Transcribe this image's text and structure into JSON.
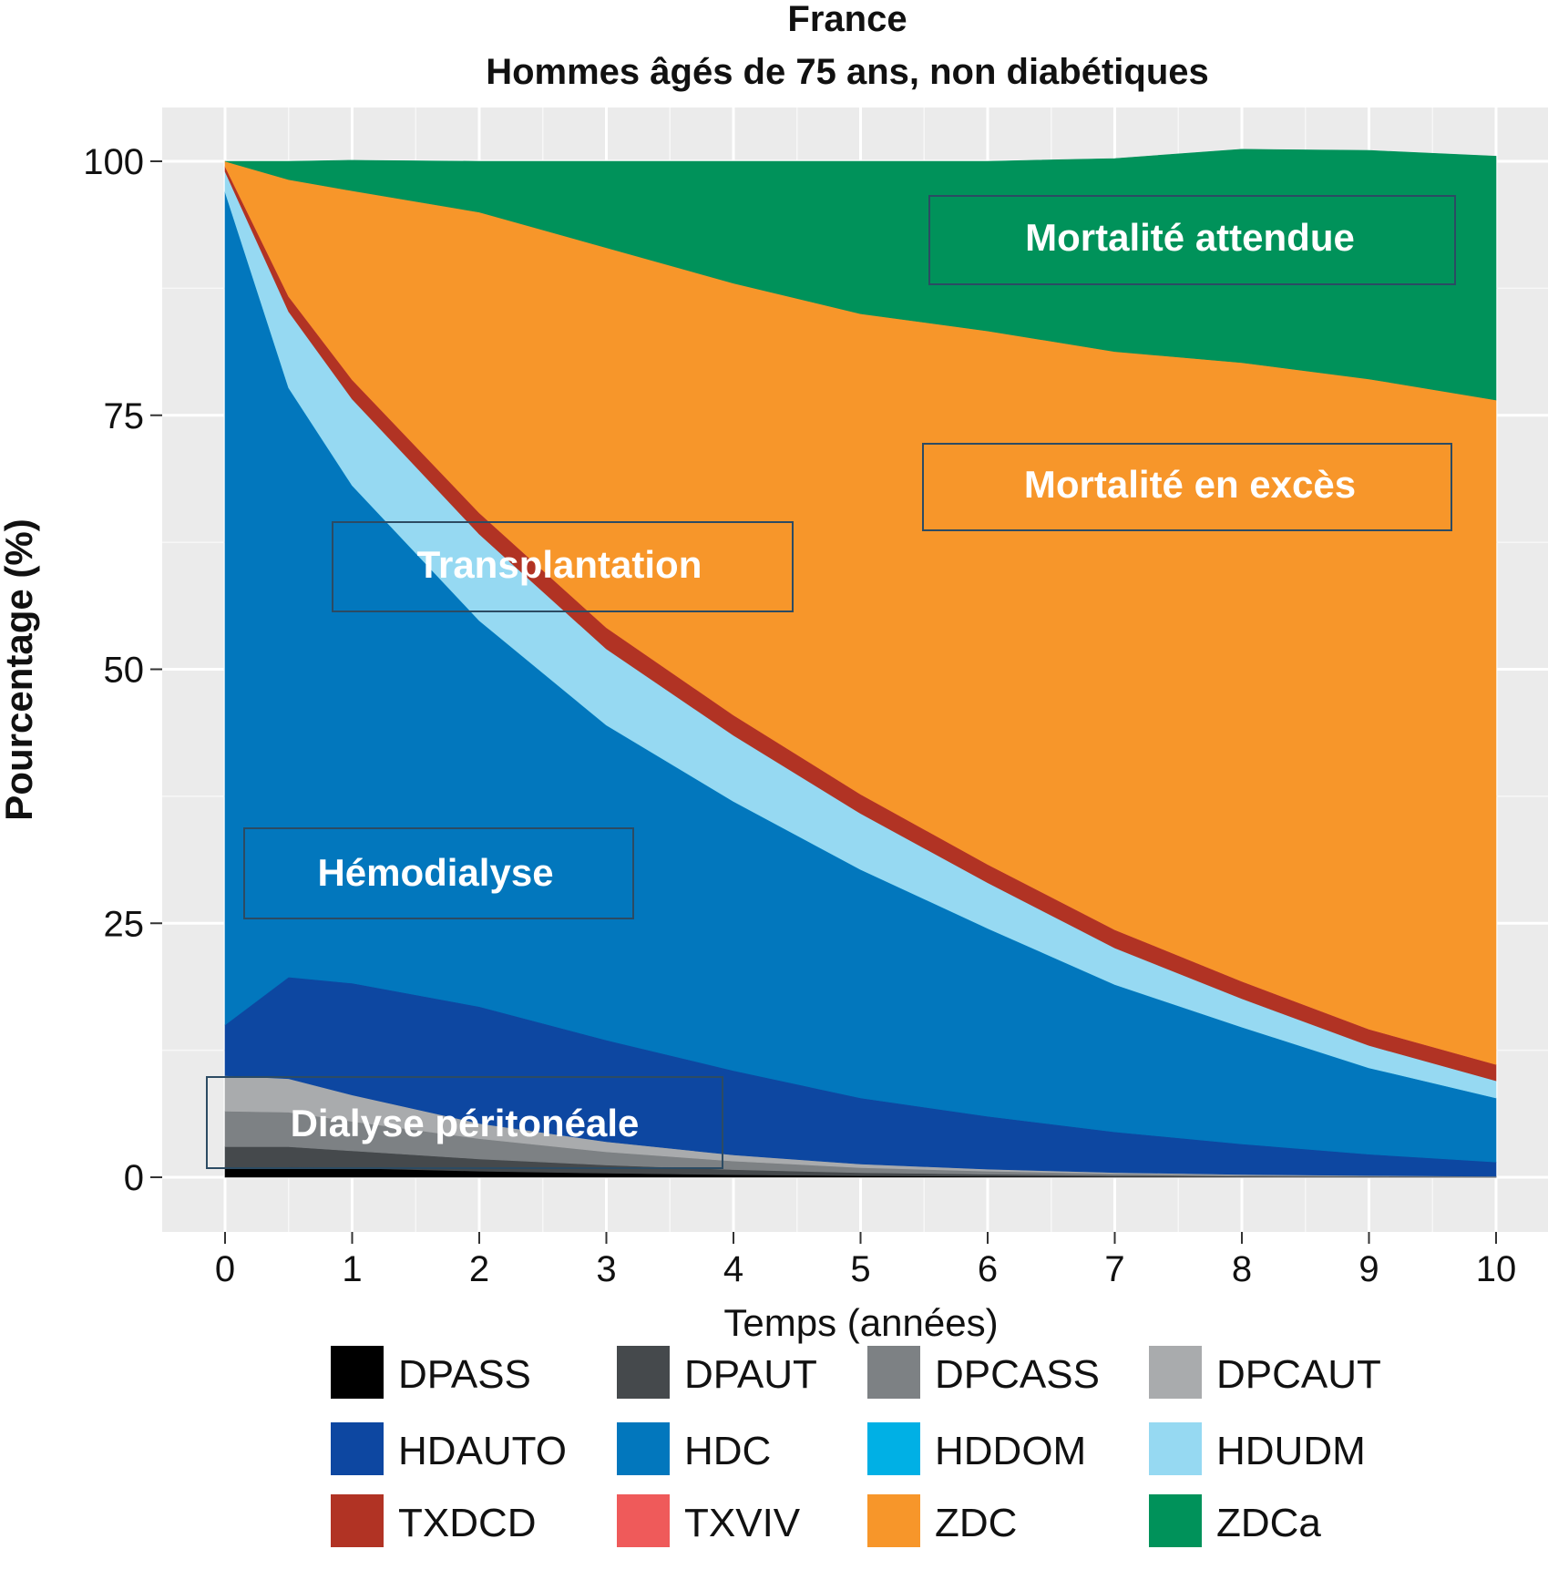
{
  "chart_data": {
    "type": "area",
    "title": "France",
    "subtitle": "Hommes âgés de 75 ans, non diabétiques",
    "xlabel": "Temps (années)",
    "ylabel": "Pourcentage (%)",
    "xlim": [
      0,
      10
    ],
    "ylim": [
      0,
      100
    ],
    "x_ticks": [
      0,
      1,
      2,
      3,
      4,
      5,
      6,
      7,
      8,
      9,
      10
    ],
    "y_ticks": [
      0,
      25,
      50,
      75,
      100
    ],
    "grid": true,
    "legend_position": "bottom",
    "stacked": true,
    "x": [
      0,
      0.5,
      1,
      2,
      3,
      4,
      5,
      6,
      7,
      8,
      9,
      10
    ],
    "series": [
      {
        "name": "DPASS",
        "color": "#000000",
        "values": [
          1.0,
          1.0,
          0.9,
          0.6,
          0.4,
          0.25,
          0.15,
          0.1,
          0.05,
          0.03,
          0.02,
          0.01
        ]
      },
      {
        "name": "DPAUT",
        "color": "#45494c",
        "values": [
          2.0,
          2.0,
          1.7,
          1.2,
          0.8,
          0.5,
          0.3,
          0.2,
          0.12,
          0.08,
          0.05,
          0.03
        ]
      },
      {
        "name": "DPCASS",
        "color": "#7d8184",
        "values": [
          3.5,
          3.4,
          2.9,
          2.0,
          1.3,
          0.85,
          0.5,
          0.3,
          0.18,
          0.1,
          0.06,
          0.04
        ]
      },
      {
        "name": "DPCAUT",
        "color": "#a9abad",
        "values": [
          3.5,
          3.3,
          2.6,
          1.5,
          1.0,
          0.6,
          0.35,
          0.2,
          0.12,
          0.07,
          0.04,
          0.02
        ]
      },
      {
        "name": "HDAUTO",
        "color": "#0d47a1",
        "values": [
          5.0,
          10.0,
          11.0,
          11.5,
          10.0,
          8.3,
          6.5,
          5.2,
          4.0,
          3.0,
          2.1,
          1.4
        ]
      },
      {
        "name": "HDC",
        "color": "#0277bd",
        "values": [
          82.0,
          58.0,
          49.0,
          38.0,
          31.0,
          26.5,
          22.5,
          18.5,
          14.5,
          11.5,
          8.5,
          6.3
        ]
      },
      {
        "name": "HDDOM",
        "color": "#00b0e5",
        "values": [
          0,
          0,
          0,
          0,
          0,
          0,
          0,
          0,
          0,
          0,
          0,
          0
        ]
      },
      {
        "name": "HDUDM",
        "color": "#96d9f2",
        "values": [
          2.0,
          7.5,
          8.5,
          8.5,
          7.5,
          6.5,
          5.5,
          4.5,
          3.6,
          2.8,
          2.2,
          1.7
        ]
      },
      {
        "name": "TXDCD",
        "color": "#b13324",
        "values": [
          0.5,
          1.5,
          1.9,
          2.1,
          2.1,
          2.0,
          1.9,
          1.8,
          1.8,
          1.7,
          1.6,
          1.6
        ]
      },
      {
        "name": "TXVIV",
        "color": "#ef5a5a",
        "values": [
          0,
          0,
          0,
          0,
          0,
          0,
          0,
          0,
          0,
          0,
          0,
          0
        ]
      },
      {
        "name": "ZDC",
        "color": "#f7962a",
        "values": [
          0.5,
          11.5,
          18.6,
          29.6,
          37.4,
          42.5,
          47.3,
          52.5,
          56.9,
          60.9,
          64.0,
          65.4
        ]
      },
      {
        "name": "ZDCa",
        "color": "#00925a",
        "values": [
          0,
          1.8,
          3.0,
          5.0,
          8.5,
          12.0,
          15.0,
          16.7,
          19.0,
          21.0,
          22.5,
          24.0
        ]
      }
    ],
    "annotations": [
      {
        "text": "Mortalité attendue",
        "series": "ZDCa"
      },
      {
        "text": "Mortalité en excès",
        "series": "ZDC"
      },
      {
        "text": "Transplantation",
        "series": "TXDCD"
      },
      {
        "text": "Hémodialyse",
        "series": "HDC"
      },
      {
        "text": "Dialyse péritonéale",
        "series": "DPCAUT"
      }
    ]
  }
}
